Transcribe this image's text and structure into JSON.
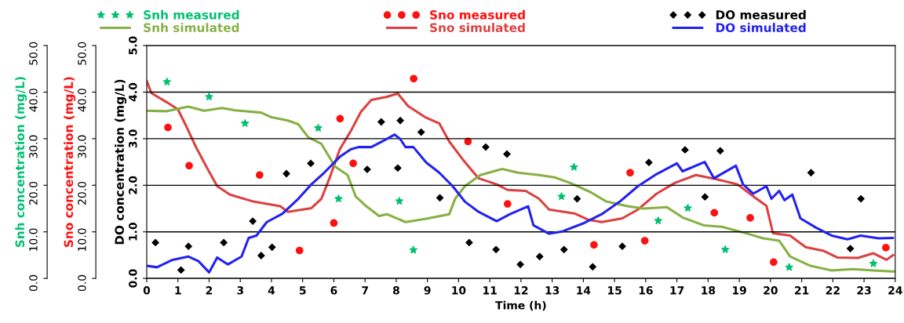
{
  "chart_data": {
    "type": "line",
    "xlabel": "Time (h)",
    "ylabel": "DO concentration (mg/L)",
    "y2label": "Sno concentration (mg/L)",
    "y3label": "Snh concentration (mg/L)",
    "xlim": [
      0,
      24
    ],
    "xticks": [
      0,
      1,
      2,
      3,
      4,
      5,
      6,
      7,
      8,
      9,
      10,
      11,
      12,
      13,
      14,
      15,
      16,
      17,
      18,
      19,
      20,
      21,
      22,
      23,
      24
    ],
    "ylim": [
      0,
      5
    ],
    "yticks": [
      {
        "value": 0,
        "label": "0.0"
      },
      {
        "value": 1,
        "label": "1.0"
      },
      {
        "value": 2,
        "label": "2.0"
      },
      {
        "value": 3,
        "label": "3.0"
      },
      {
        "value": 4,
        "label": "4.0"
      },
      {
        "value": 5,
        "label": "5.0"
      }
    ],
    "y2lim": [
      0,
      50
    ],
    "y2ticks": [
      {
        "value": 0,
        "label": "0.0"
      },
      {
        "value": 10,
        "label": "10.0"
      },
      {
        "value": 20,
        "label": "20.0"
      },
      {
        "value": 30,
        "label": "30.0"
      },
      {
        "value": 40,
        "label": "40.0"
      },
      {
        "value": 50,
        "label": "50.0"
      }
    ],
    "y3lim": [
      0,
      50
    ],
    "y3ticks": [
      {
        "value": 0,
        "label": "0.0"
      },
      {
        "value": 10,
        "label": "10.0"
      },
      {
        "value": 20,
        "label": "20.0"
      },
      {
        "value": 30,
        "label": "30.0"
      },
      {
        "value": 40,
        "label": "40.0"
      },
      {
        "value": 50,
        "label": "50.0"
      }
    ],
    "grid": "y",
    "legend": "top",
    "series": [
      {
        "name": "Snh measured",
        "type": "scatter",
        "marker": "star",
        "color": "#00c070",
        "axis": "y3",
        "x": [
          0.65,
          2.0,
          3.15,
          5.5,
          6.15,
          8.1,
          8.55,
          13.3,
          13.7,
          16.4,
          17.35,
          18.55,
          20.6,
          23.3
        ],
        "values": [
          42.2,
          39.0,
          33.3,
          32.3,
          17.1,
          16.6,
          6.1,
          17.6,
          23.9,
          12.4,
          15.1,
          6.2,
          2.4,
          3.2
        ]
      },
      {
        "name": "Snh simulated",
        "color": "#86b043",
        "axis": "y3",
        "x": [
          0,
          0.65,
          1.33,
          1.84,
          2.42,
          2.84,
          3.67,
          4.0,
          4.53,
          4.86,
          5.18,
          5.6,
          6.04,
          6.44,
          6.7,
          7.04,
          7.45,
          7.7,
          8.3,
          8.96,
          9.7,
          9.89,
          10.2,
          10.7,
          11.4,
          11.9,
          12.58,
          13.08,
          13.58,
          14.24,
          14.74,
          15.42,
          15.92,
          16.68,
          17.18,
          17.86,
          18.44,
          19.27,
          19.77,
          20.28,
          20.63,
          21.28,
          21.96,
          22.64,
          23.3,
          23.9,
          24
        ],
        "values": [
          36.0,
          35.9,
          36.9,
          36.0,
          36.6,
          36.1,
          35.6,
          34.6,
          33.9,
          33.1,
          30.3,
          28.9,
          24.0,
          22.2,
          17.6,
          15.5,
          13.4,
          13.8,
          12.1,
          12.8,
          13.8,
          17.1,
          19.8,
          22.2,
          23.5,
          22.7,
          22.2,
          21.7,
          20.5,
          18.5,
          16.5,
          15.5,
          15.0,
          15.3,
          13.1,
          11.4,
          11.1,
          9.6,
          8.6,
          8.1,
          4.7,
          2.7,
          1.7,
          2.0,
          1.7,
          1.5,
          1.5
        ]
      },
      {
        "name": "Sno measured",
        "type": "scatter",
        "marker": "circle",
        "color": "#ff1010",
        "axis": "y2",
        "x": [
          0.68,
          1.36,
          3.62,
          4.9,
          6.0,
          6.2,
          6.62,
          8.56,
          10.3,
          11.57,
          14.34,
          15.5,
          15.97,
          18.2,
          19.35,
          20.1,
          23.7
        ],
        "values": [
          32.4,
          24.2,
          22.2,
          6.0,
          11.9,
          34.3,
          24.7,
          42.9,
          29.4,
          16.0,
          7.2,
          22.7,
          8.1,
          14.1,
          13.0,
          3.5,
          6.6
        ]
      },
      {
        "name": "Sno simulated",
        "color": "#dd4040",
        "axis": "y2",
        "x": [
          0,
          0.15,
          0.65,
          1.0,
          1.26,
          1.58,
          1.92,
          2.26,
          2.67,
          3.42,
          4.28,
          4.53,
          5.28,
          5.6,
          5.86,
          6.19,
          6.54,
          6.87,
          7.2,
          7.7,
          8.05,
          8.38,
          8.96,
          9.38,
          9.7,
          10.14,
          10.64,
          11.22,
          11.57,
          12.15,
          12.58,
          12.9,
          13.74,
          14.16,
          14.59,
          15.25,
          15.75,
          16.35,
          16.93,
          17.61,
          18.26,
          18.94,
          19.45,
          19.87,
          20.08,
          20.63,
          21.13,
          21.71,
          22.14,
          22.8,
          23.3,
          23.72,
          23.93
        ],
        "values": [
          42.4,
          39.8,
          37.8,
          36.3,
          32.8,
          28.2,
          23.9,
          19.8,
          18.0,
          16.5,
          15.5,
          14.3,
          15.1,
          17.1,
          21.5,
          27.7,
          31.6,
          35.8,
          38.3,
          39.0,
          39.7,
          37.0,
          34.5,
          33.3,
          29.4,
          25.5,
          21.5,
          20.2,
          19.0,
          18.8,
          17.1,
          14.8,
          13.9,
          12.6,
          12.1,
          12.9,
          14.8,
          18.2,
          20.5,
          22.2,
          21.3,
          20.2,
          17.6,
          15.6,
          9.7,
          9.2,
          6.7,
          5.9,
          4.5,
          4.4,
          5.4,
          4.0,
          5.0
        ]
      },
      {
        "name": "DO measured",
        "type": "scatter",
        "marker": "diamond",
        "color": "#000000",
        "x": [
          0.28,
          1.1,
          1.34,
          2.47,
          3.4,
          3.67,
          4.02,
          4.48,
          5.26,
          7.07,
          7.52,
          8.05,
          8.13,
          8.8,
          9.4,
          10.34,
          10.87,
          11.2,
          11.55,
          11.98,
          12.6,
          13.38,
          13.8,
          14.3,
          15.25,
          16.1,
          17.26,
          17.9,
          18.39,
          21.3,
          22.56,
          22.9
        ],
        "values": [
          0.77,
          0.18,
          0.69,
          0.77,
          1.23,
          0.49,
          0.67,
          2.25,
          2.47,
          2.34,
          3.36,
          2.37,
          3.39,
          3.14,
          1.73,
          0.77,
          2.82,
          0.62,
          2.67,
          0.3,
          0.47,
          0.62,
          1.71,
          0.25,
          0.69,
          2.49,
          2.76,
          1.75,
          2.74,
          2.27,
          0.64,
          1.71
        ]
      },
      {
        "name": "DO simulated",
        "color": "#2222ee",
        "x": [
          0,
          0.33,
          0.83,
          1.33,
          1.66,
          2.0,
          2.26,
          2.6,
          3.04,
          3.27,
          3.52,
          3.85,
          4.35,
          4.86,
          5.28,
          5.69,
          6.19,
          6.54,
          6.79,
          7.2,
          7.55,
          7.95,
          8.13,
          8.3,
          8.55,
          8.96,
          9.38,
          9.81,
          10.2,
          10.64,
          11.22,
          11.65,
          12.23,
          12.4,
          12.9,
          13.33,
          13.99,
          14.59,
          15.17,
          15.75,
          16.35,
          17.0,
          17.18,
          17.89,
          18.19,
          18.89,
          19.12,
          19.45,
          19.87,
          20.03,
          20.28,
          20.45,
          20.7,
          20.96,
          21.46,
          21.96,
          22.47,
          22.89,
          23.47,
          23.92
        ],
        "values": [
          0.27,
          0.24,
          0.4,
          0.47,
          0.37,
          0.13,
          0.45,
          0.3,
          0.47,
          0.87,
          0.92,
          1.21,
          1.39,
          1.71,
          2.02,
          2.27,
          2.61,
          2.77,
          2.82,
          2.82,
          2.94,
          3.09,
          2.99,
          2.82,
          2.82,
          2.49,
          2.27,
          1.98,
          1.65,
          1.43,
          1.23,
          1.38,
          1.55,
          1.14,
          0.96,
          1.01,
          1.18,
          1.38,
          1.65,
          1.98,
          2.24,
          2.47,
          2.3,
          2.5,
          2.15,
          2.42,
          2.02,
          1.82,
          1.98,
          1.71,
          1.88,
          1.68,
          1.8,
          1.29,
          1.09,
          0.92,
          0.84,
          0.92,
          0.86,
          0.87
        ]
      }
    ]
  }
}
